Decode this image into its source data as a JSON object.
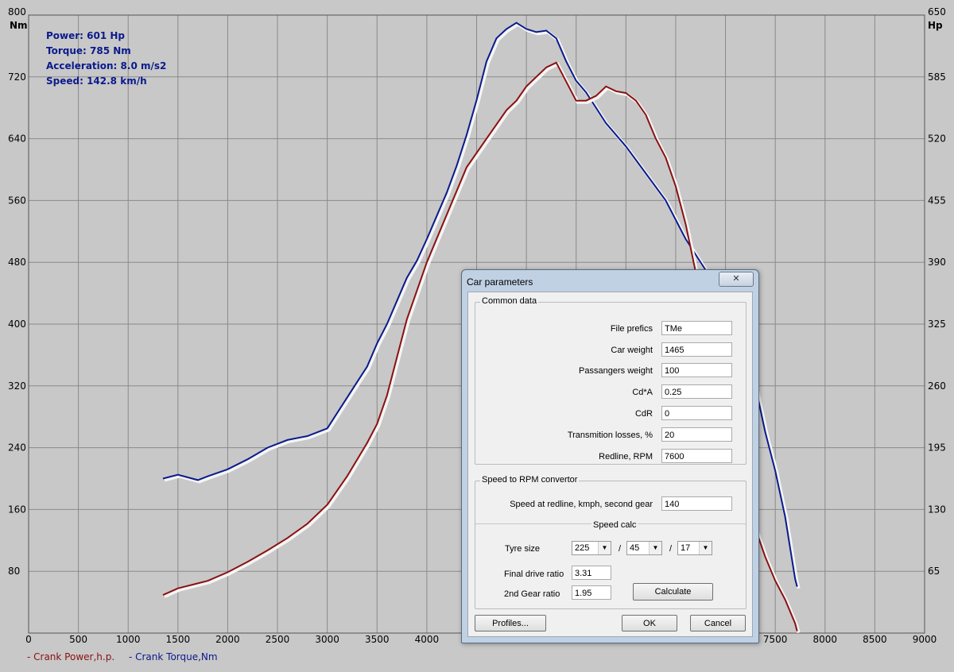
{
  "readout": {
    "power": "Power: 601 Hp",
    "torque": "Torque: 785 Nm",
    "acceleration": "Acceleration: 8.0 m/s2",
    "speed": "Speed: 142.8 km/h"
  },
  "legend": {
    "power": "- Crank Power,h.p.",
    "torque": "- Crank Torque,Nm"
  },
  "colors": {
    "power": "#8b1010",
    "torque": "#0a1a8c",
    "grid": "#8a8a8a",
    "background": "#c8c8c8"
  },
  "chart_data": {
    "type": "line",
    "left_unit": "Nm",
    "right_unit": "Hp",
    "x_ticks": [
      "0",
      "500",
      "1000",
      "1500",
      "2000",
      "2500",
      "3000",
      "3500",
      "4000",
      "4500",
      "5000",
      "5500",
      "6000",
      "6500",
      "7000",
      "7500",
      "8000",
      "8500",
      "9000"
    ],
    "y_left_ticks": [
      "80",
      "160",
      "240",
      "320",
      "400",
      "480",
      "560",
      "640",
      "720",
      "800"
    ],
    "y_right_ticks": [
      "65",
      "130",
      "195",
      "260",
      "325",
      "390",
      "455",
      "520",
      "585",
      "650"
    ],
    "xlim": [
      0,
      9000
    ],
    "ylim_left": [
      0,
      800
    ],
    "ylim_right": [
      0,
      650
    ],
    "grid": true,
    "series": [
      {
        "name": "- Crank Torque,Nm",
        "axis": "left",
        "x": [
          1350,
          1500,
          1700,
          1800,
          2000,
          2200,
          2400,
          2600,
          2800,
          3000,
          3100,
          3200,
          3300,
          3400,
          3500,
          3600,
          3700,
          3800,
          3900,
          4000,
          4100,
          4200,
          4300,
          4400,
          4500,
          4600,
          4700,
          4800,
          4900,
          5000,
          5100,
          5200,
          5300,
          5400,
          5500,
          5600,
          5800,
          6000,
          6200,
          6400,
          6600,
          6800,
          7000,
          7200,
          7300,
          7400,
          7500,
          7600,
          7650,
          7700,
          7720
        ],
        "values": [
          200,
          205,
          198,
          203,
          212,
          225,
          240,
          250,
          255,
          265,
          285,
          305,
          325,
          345,
          375,
          400,
          430,
          460,
          482,
          510,
          540,
          570,
          605,
          645,
          690,
          740,
          770,
          782,
          790,
          782,
          778,
          780,
          770,
          740,
          715,
          700,
          660,
          630,
          595,
          560,
          510,
          470,
          440,
          380,
          320,
          260,
          210,
          150,
          110,
          70,
          60
        ]
      },
      {
        "name": "- Crank Power,h.p.",
        "axis": "right",
        "x": [
          1350,
          1500,
          1800,
          2000,
          2200,
          2400,
          2600,
          2800,
          3000,
          3200,
          3400,
          3500,
          3600,
          3700,
          3800,
          4000,
          4200,
          4400,
          4600,
          4800,
          4900,
          5000,
          5100,
          5200,
          5300,
          5400,
          5500,
          5600,
          5700,
          5800,
          5900,
          6000,
          6100,
          6200,
          6300,
          6400,
          6500,
          6600,
          6700,
          6800,
          6900,
          7000,
          7100,
          7200,
          7300,
          7400,
          7500,
          7600,
          7700,
          7720
        ],
        "values": [
          40,
          47,
          55,
          64,
          75,
          87,
          100,
          115,
          135,
          165,
          200,
          220,
          250,
          290,
          330,
          390,
          440,
          490,
          520,
          550,
          560,
          575,
          585,
          595,
          600,
          580,
          560,
          560,
          565,
          575,
          570,
          568,
          560,
          545,
          520,
          500,
          470,
          430,
          380,
          320,
          270,
          215,
          175,
          140,
          110,
          80,
          55,
          35,
          10,
          2
        ]
      }
    ]
  },
  "dialog": {
    "title": "Car parameters",
    "close": "✕",
    "common": {
      "legend": "Common data",
      "file_prefix": {
        "label": "File prefics",
        "value": "TMe"
      },
      "car_weight": {
        "label": "Car weight",
        "value": "1465"
      },
      "passengers_weight": {
        "label": "Passangers weight",
        "value": "100"
      },
      "cda": {
        "label": "Cd*A",
        "value": "0.25"
      },
      "cdr": {
        "label": "CdR",
        "value": "0"
      },
      "losses": {
        "label": "Transmition losses, %",
        "value": "20"
      },
      "redline": {
        "label": "Redline, RPM",
        "value": "7600"
      }
    },
    "converter": {
      "legend": "Speed to RPM convertor",
      "speed_redline": {
        "label": "Speed at redline, kmph, second gear",
        "value": "140"
      },
      "speed_calc": "Speed calc",
      "tyre_size": {
        "label": "Tyre size",
        "width": "225",
        "aspect": "45",
        "rim": "17",
        "sep": "/"
      },
      "final_drive": {
        "label": "Final drive ratio",
        "value": "3.31"
      },
      "second_gear": {
        "label": "2nd Gear ratio",
        "value": "1.95"
      },
      "calculate": "Calculate"
    },
    "profiles": "Profiles...",
    "ok": "OK",
    "cancel": "Cancel"
  }
}
